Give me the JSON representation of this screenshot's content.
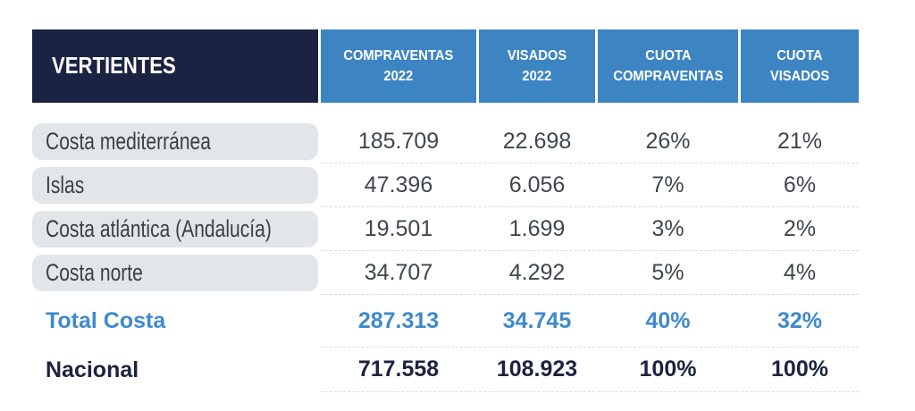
{
  "colors": {
    "navy": "#1b2342",
    "header_blue": "#3d84c3",
    "accent_blue": "#3f89cd",
    "pill_gray": "#e3e6e9",
    "label_text": "#3a4046",
    "number_text": "#3f464e",
    "dash": "#d7dce0",
    "white": "#ffffff"
  },
  "chart_data": {
    "type": "table",
    "header": {
      "vertientes": "VERTIENTES",
      "cols": [
        {
          "l1": "COMPRAVENTAS",
          "l2": "2022"
        },
        {
          "l1": "VISADOS",
          "l2": "2022"
        },
        {
          "l1": "CUOTA",
          "l2": "COMPRAVENTAS"
        },
        {
          "l1": "CUOTA",
          "l2": "VISADOS"
        }
      ]
    },
    "rows": [
      {
        "label": "Costa mediterránea",
        "compraventas": "185.709",
        "visados": "22.698",
        "cuota_compraventas": "26%",
        "cuota_visados": "21%"
      },
      {
        "label": "Islas",
        "compraventas": "47.396",
        "visados": "6.056",
        "cuota_compraventas": "7%",
        "cuota_visados": "6%"
      },
      {
        "label": "Costa atlántica (Andalucía)",
        "compraventas": "19.501",
        "visados": "1.699",
        "cuota_compraventas": "3%",
        "cuota_visados": "2%"
      },
      {
        "label": "Costa norte",
        "compraventas": "34.707",
        "visados": "4.292",
        "cuota_compraventas": "5%",
        "cuota_visados": "4%"
      },
      {
        "label": "Total Costa",
        "compraventas": "287.313",
        "visados": "34.745",
        "cuota_compraventas": "40%",
        "cuota_visados": "32%"
      },
      {
        "label": "Nacional",
        "compraventas": "717.558",
        "visados": "108.923",
        "cuota_compraventas": "100%",
        "cuota_visados": "100%"
      }
    ]
  }
}
